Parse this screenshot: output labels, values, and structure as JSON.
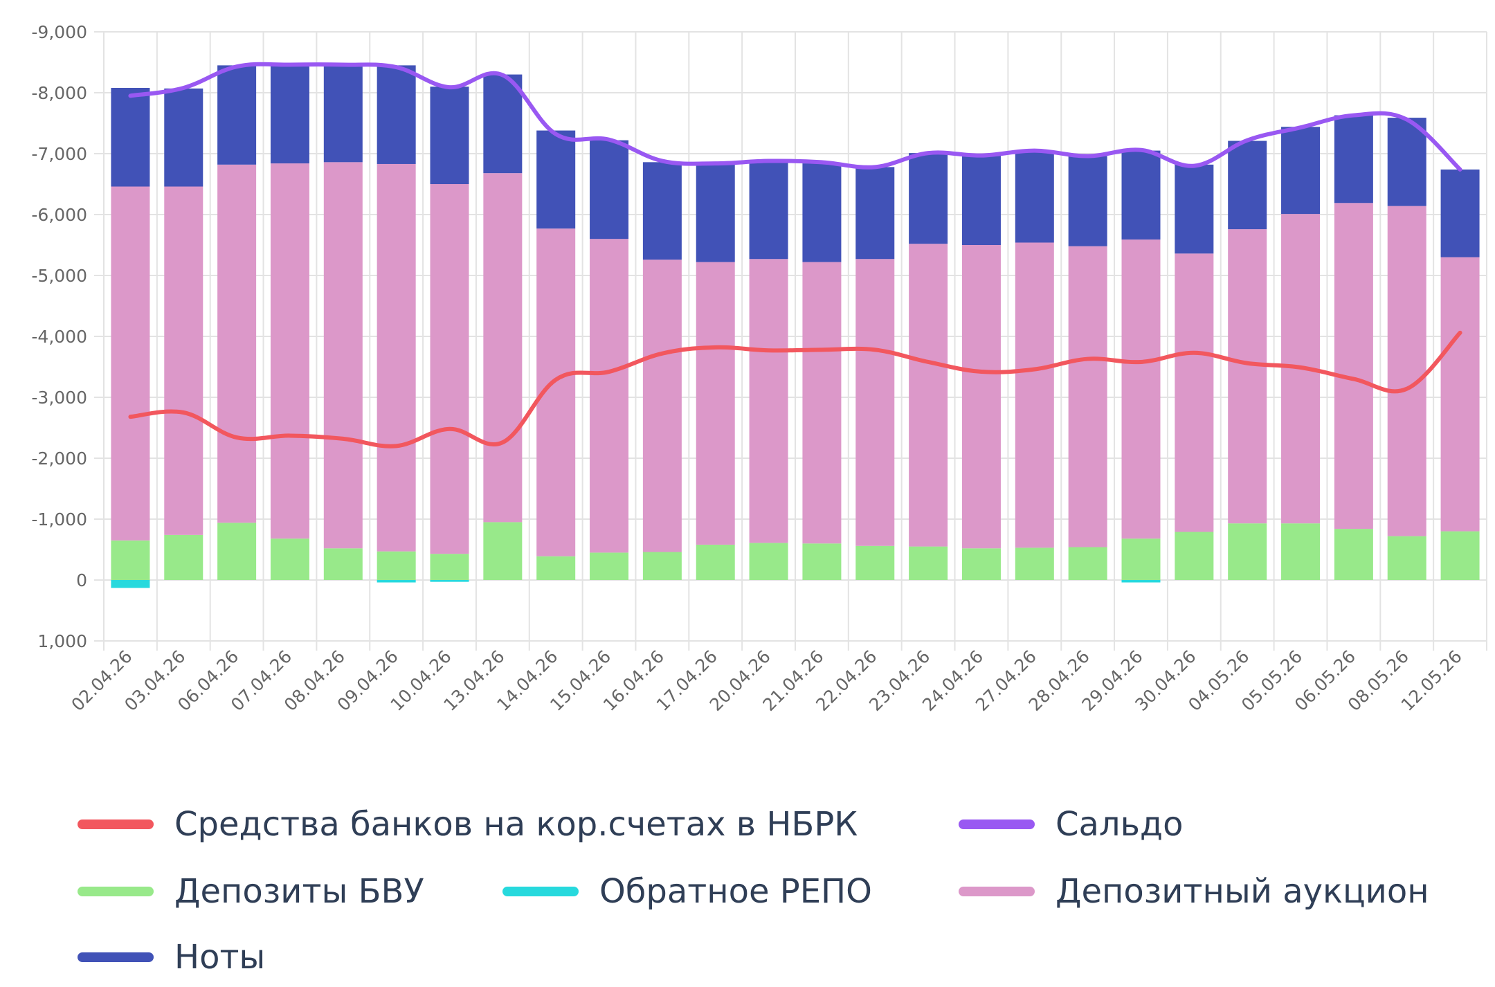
{
  "chart_data": {
    "type": "bar",
    "stacked": true,
    "y_reversed": true,
    "grid": true,
    "legend_position": "bottom",
    "categories": [
      "02.04.26",
      "03.04.26",
      "06.04.26",
      "07.04.26",
      "08.04.26",
      "09.04.26",
      "10.04.26",
      "13.04.26",
      "14.04.26",
      "15.04.26",
      "16.04.26",
      "17.04.26",
      "20.04.26",
      "21.04.26",
      "22.04.26",
      "23.04.26",
      "24.04.26",
      "27.04.26",
      "28.04.26",
      "29.04.26",
      "30.04.26",
      "04.05.26",
      "05.05.26",
      "06.05.26",
      "08.05.26",
      "12.05.26"
    ],
    "ylim": [
      1000,
      -9000
    ],
    "yticks": [
      -9000,
      -8000,
      -7000,
      -6000,
      -5000,
      -4000,
      -3000,
      -2000,
      -1000,
      0,
      1000
    ],
    "ytick_labels": [
      "-9,000",
      "-8,000",
      "-7,000",
      "-6,000",
      "-5,000",
      "-4,000",
      "-3,000",
      "-2,000",
      "-1,000",
      "0",
      "1,000"
    ],
    "series": [
      {
        "name": "Депозиты БВУ",
        "type": "bar",
        "color": "#98e98a",
        "values": [
          -650,
          -740,
          -940,
          -680,
          -520,
          -470,
          -430,
          -950,
          -390,
          -450,
          -460,
          -580,
          -610,
          -600,
          -560,
          -550,
          -520,
          -530,
          -540,
          -680,
          -790,
          -930,
          -930,
          -840,
          -720,
          -800
        ]
      },
      {
        "name": "Обратное РЕПО",
        "type": "bar",
        "color": "#27d9dd",
        "values": [
          130,
          0,
          0,
          0,
          0,
          40,
          30,
          0,
          0,
          0,
          0,
          0,
          0,
          0,
          0,
          0,
          0,
          0,
          0,
          40,
          0,
          0,
          0,
          0,
          0,
          0
        ]
      },
      {
        "name": "Депозитный аукцион",
        "type": "bar",
        "color": "#dc98c9",
        "values": [
          -5810,
          -5720,
          -5880,
          -6160,
          -6340,
          -6360,
          -6070,
          -5730,
          -5380,
          -5150,
          -4800,
          -4640,
          -4660,
          -4620,
          -4710,
          -4970,
          -4980,
          -5010,
          -4940,
          -4910,
          -4570,
          -4830,
          -5080,
          -5350,
          -5420,
          -4500
        ]
      },
      {
        "name": "Ноты",
        "type": "bar",
        "color": "#4152b7",
        "values": [
          -1620,
          -1610,
          -1630,
          -1630,
          -1610,
          -1620,
          -1600,
          -1620,
          -1610,
          -1620,
          -1600,
          -1620,
          -1600,
          -1620,
          -1510,
          -1490,
          -1480,
          -1490,
          -1480,
          -1460,
          -1460,
          -1450,
          -1430,
          -1440,
          -1450,
          -1440
        ]
      },
      {
        "name": "Средства банков на кор.счетах в НБРК",
        "type": "line",
        "color": "#f2575e",
        "values": [
          -2680,
          -2750,
          -2340,
          -2370,
          -2320,
          -2200,
          -2480,
          -2260,
          -3290,
          -3420,
          -3720,
          -3820,
          -3770,
          -3780,
          -3780,
          -3580,
          -3420,
          -3460,
          -3630,
          -3580,
          -3730,
          -3560,
          -3490,
          -3300,
          -3140,
          -4060
        ]
      },
      {
        "name": "Сальдо",
        "type": "line",
        "color": "#9958f2",
        "values": [
          -7950,
          -8080,
          -8430,
          -8460,
          -8460,
          -8420,
          -8090,
          -8290,
          -7320,
          -7230,
          -6880,
          -6840,
          -6880,
          -6860,
          -6780,
          -7010,
          -6970,
          -7050,
          -6960,
          -7060,
          -6800,
          -7220,
          -7430,
          -7630,
          -7560,
          -6740
        ]
      }
    ]
  },
  "legend": {
    "items": [
      {
        "label": "Средства банков на кор.счетах в НБРК",
        "color": "#f2575e"
      },
      {
        "label": "Сальдо",
        "color": "#9958f2"
      },
      {
        "label": "Депозиты БВУ",
        "color": "#98e98a"
      },
      {
        "label": "Обратное РЕПО",
        "color": "#27d9dd"
      },
      {
        "label": "Депозитный аукцион",
        "color": "#dc98c9"
      },
      {
        "label": "Ноты",
        "color": "#4152b7"
      }
    ]
  }
}
